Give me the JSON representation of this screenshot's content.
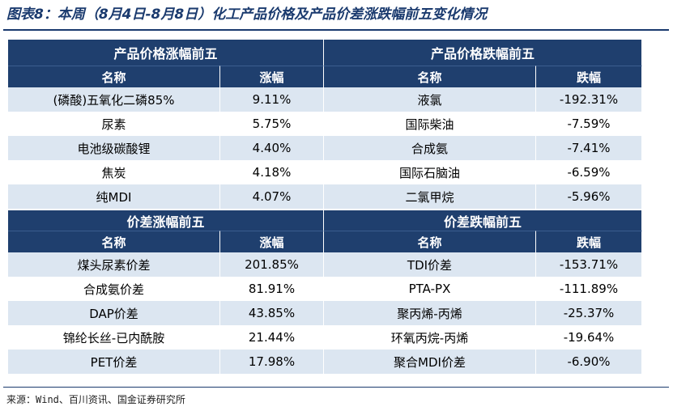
{
  "title": "图表8：本周（8月4日-8月8日）化工产品价格及产品价差涨跌幅前五变化情况",
  "source": "来源：Wind、百川资讯、国金证券研究所",
  "price_up": {
    "header": "产品价格涨幅前五",
    "col_name": "名称",
    "col_change": "涨幅",
    "rows": [
      {
        "name": "(磷酸)五氧化二磷85%",
        "change": "9.11%"
      },
      {
        "name": "尿素",
        "change": "5.75%"
      },
      {
        "name": "电池级碳酸锂",
        "change": "4.40%"
      },
      {
        "name": "焦炭",
        "change": "4.18%"
      },
      {
        "name": "纯MDI",
        "change": "4.07%"
      }
    ]
  },
  "price_down": {
    "header": "产品价格跌幅前五",
    "col_name": "名称",
    "col_change": "跌幅",
    "rows": [
      {
        "name": "液氯",
        "change": "-192.31%"
      },
      {
        "name": "国际柴油",
        "change": "-7.59%"
      },
      {
        "name": "合成氨",
        "change": "-7.41%"
      },
      {
        "name": "国际石脑油",
        "change": "-6.59%"
      },
      {
        "name": "二氯甲烷",
        "change": "-5.96%"
      }
    ]
  },
  "spread_up": {
    "header": "价差涨幅前五",
    "col_name": "名称",
    "col_change": "涨幅",
    "rows": [
      {
        "name": "煤头尿素价差",
        "change": "201.85%"
      },
      {
        "name": "合成氨价差",
        "change": "81.91%"
      },
      {
        "name": "DAP价差",
        "change": "43.85%"
      },
      {
        "name": "锦纶长丝-已内酰胺",
        "change": "21.44%"
      },
      {
        "name": "PET价差",
        "change": "17.98%"
      }
    ]
  },
  "spread_down": {
    "header": "价差跌幅前五",
    "col_name": "名称",
    "col_change": "跌幅",
    "rows": [
      {
        "name": "TDI价差",
        "change": "-153.71%"
      },
      {
        "name": "PTA-PX",
        "change": "-111.89%"
      },
      {
        "name": "聚丙烯-丙烯",
        "change": "-25.37%"
      },
      {
        "name": "环氧丙烷-丙烯",
        "change": "-19.64%"
      },
      {
        "name": "聚合MDI价差",
        "change": "-6.90%"
      }
    ]
  },
  "colors": {
    "header_bg": "#1f3f6e",
    "stripe_bg": "#dce6f1",
    "title_color": "#1a3a6e"
  }
}
